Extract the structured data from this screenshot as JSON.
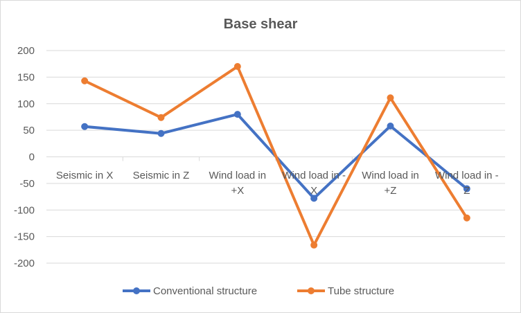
{
  "chart_data": {
    "type": "line",
    "title": "Base shear",
    "categories": [
      [
        "Seismic in X"
      ],
      [
        "Seismic in Z"
      ],
      [
        "Wind load in",
        "+X"
      ],
      [
        "Wind load in -",
        "X"
      ],
      [
        "Wind load in",
        "+Z"
      ],
      [
        "Wind load in -",
        "Z"
      ]
    ],
    "ylim": [
      -200,
      200
    ],
    "yticks": [
      200,
      150,
      100,
      50,
      0,
      -50,
      -100,
      -150,
      -200
    ],
    "grid": true,
    "legend_position": "bottom",
    "series": [
      {
        "name": "Conventional structure",
        "color": "#4472c4",
        "values": [
          57,
          44,
          80,
          -78,
          58,
          -60
        ]
      },
      {
        "name": "Tube structure",
        "color": "#ed7d31",
        "values": [
          143,
          74,
          170,
          -166,
          111,
          -115
        ]
      }
    ]
  }
}
